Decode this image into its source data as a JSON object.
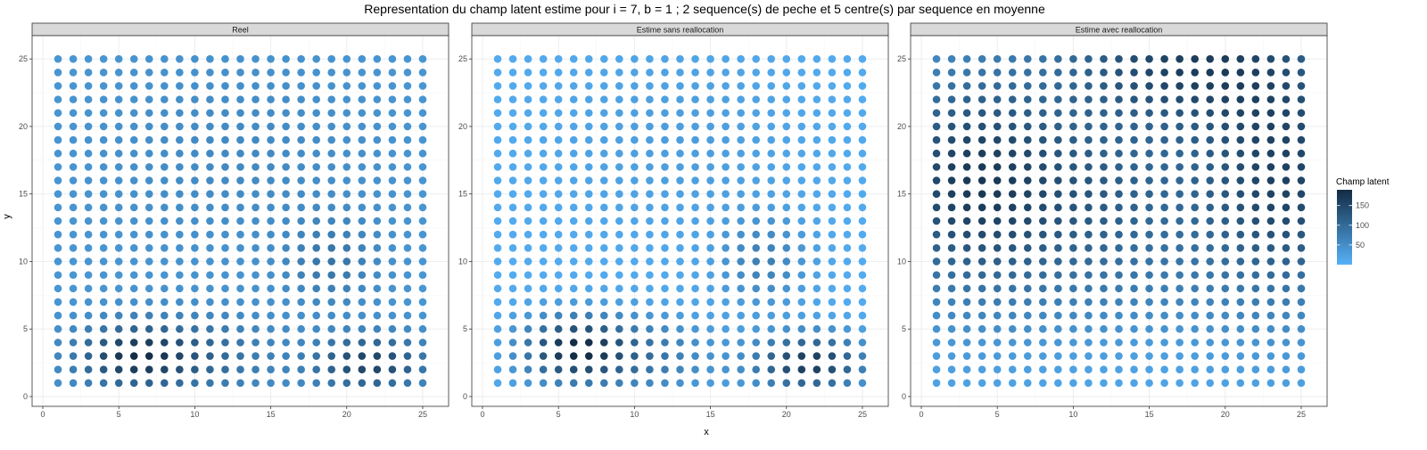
{
  "chart_data": {
    "type": "scatter",
    "title": "Representation du champ latent estime pour i = 7, b = 1 ; 2 sequence(s) de peche et 5 centre(s) par sequence en moyenne",
    "xlabel": "x",
    "ylabel": "y",
    "xlim": [
      0,
      26
    ],
    "ylim": [
      0,
      26
    ],
    "x_ticks": [
      0,
      5,
      10,
      15,
      20,
      25
    ],
    "y_ticks": [
      0,
      5,
      10,
      15,
      20,
      25
    ],
    "grid": true,
    "grid_points": {
      "x": [
        1,
        25
      ],
      "y": [
        1,
        25
      ],
      "step": 1
    },
    "legend": {
      "title": "Champ latent",
      "position": "right",
      "ticks": [
        50,
        100,
        150
      ],
      "range": [
        0,
        190
      ],
      "color_low": "#56B1F7",
      "color_high": "#132B43"
    },
    "panels": [
      {
        "name": "Reel",
        "field_note": "field values approximated from pixel color",
        "base": 38,
        "bumps": [
          {
            "x": 6,
            "y": 3,
            "amp": 135,
            "sx": 2.6,
            "sy": 1.6
          },
          {
            "x": 21.5,
            "y": 2.5,
            "amp": 120,
            "sx": 2.6,
            "sy": 1.4
          },
          {
            "x": 11,
            "y": 3,
            "amp": 55,
            "sx": 3.0,
            "sy": 2.0
          },
          {
            "x": 19,
            "y": 10,
            "amp": 45,
            "sx": 2.0,
            "sy": 2.2
          },
          {
            "x": 13,
            "y": 18,
            "amp": 18,
            "sx": 6.0,
            "sy": 5.0
          }
        ]
      },
      {
        "name": "Estime sans reallocation",
        "field_note": "field values approximated from pixel color",
        "base": 8,
        "bumps": [
          {
            "x": 6,
            "y": 3.5,
            "amp": 170,
            "sx": 2.4,
            "sy": 1.7
          },
          {
            "x": 21.5,
            "y": 2.5,
            "amp": 160,
            "sx": 2.6,
            "sy": 1.5
          },
          {
            "x": 11,
            "y": 3,
            "amp": 70,
            "sx": 3.0,
            "sy": 2.0
          },
          {
            "x": 18.5,
            "y": 10,
            "amp": 60,
            "sx": 2.0,
            "sy": 2.3
          },
          {
            "x": 13,
            "y": 19,
            "amp": 20,
            "sx": 6.0,
            "sy": 5.0
          }
        ]
      },
      {
        "name": "Estime avec reallocation",
        "field_note": "field values approximated from pixel color",
        "base": 15,
        "bumps": [
          {
            "x": 3,
            "y": 16,
            "amp": 140,
            "sx": 4.5,
            "sy": 6.0
          },
          {
            "x": 24,
            "y": 16,
            "amp": 135,
            "sx": 4.0,
            "sy": 6.5
          },
          {
            "x": 17,
            "y": 25,
            "amp": 130,
            "sx": 6.0,
            "sy": 3.5
          },
          {
            "x": 12.5,
            "y": 15,
            "amp": 85,
            "sx": 5.0,
            "sy": 4.5
          },
          {
            "x": 13,
            "y": 8,
            "amp": 30,
            "sx": 6.0,
            "sy": 3.0
          }
        ]
      }
    ]
  }
}
